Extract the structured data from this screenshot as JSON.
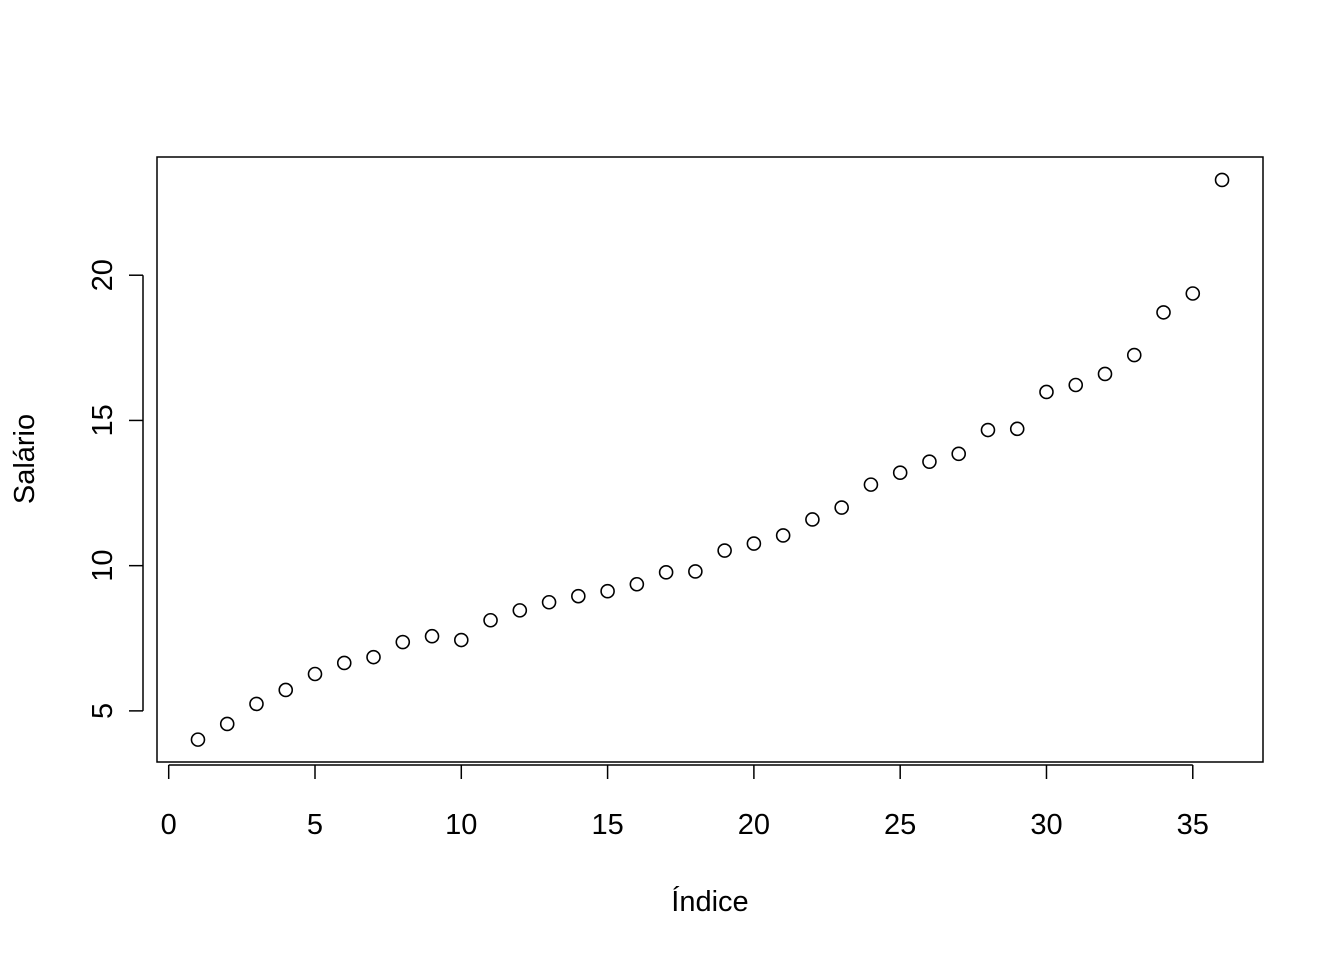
{
  "chart_data": {
    "type": "scatter",
    "x_label": "Índice",
    "y_label": "Salário",
    "x": [
      1,
      2,
      3,
      4,
      5,
      6,
      7,
      8,
      9,
      10,
      11,
      12,
      13,
      14,
      15,
      16,
      17,
      18,
      19,
      20,
      21,
      22,
      23,
      24,
      25,
      26,
      27,
      28,
      29,
      30,
      31,
      32,
      33,
      34,
      35,
      36
    ],
    "values": [
      4.01,
      4.55,
      5.24,
      5.72,
      6.27,
      6.65,
      6.85,
      7.37,
      7.57,
      7.44,
      8.12,
      8.46,
      8.74,
      8.95,
      9.12,
      9.36,
      9.77,
      9.8,
      10.52,
      10.76,
      11.04,
      11.59,
      12.0,
      12.79,
      13.2,
      13.58,
      13.85,
      14.67,
      14.71,
      15.98,
      16.22,
      16.6,
      17.25,
      18.72,
      19.37,
      23.28
    ],
    "color": "#000000",
    "xlim": [
      -0.4,
      37.4
    ],
    "ylim": [
      3.24,
      24.07
    ],
    "xticks": [
      0,
      5,
      10,
      15,
      20,
      25,
      30,
      35
    ],
    "yticks": [
      5,
      10,
      15,
      20
    ]
  }
}
